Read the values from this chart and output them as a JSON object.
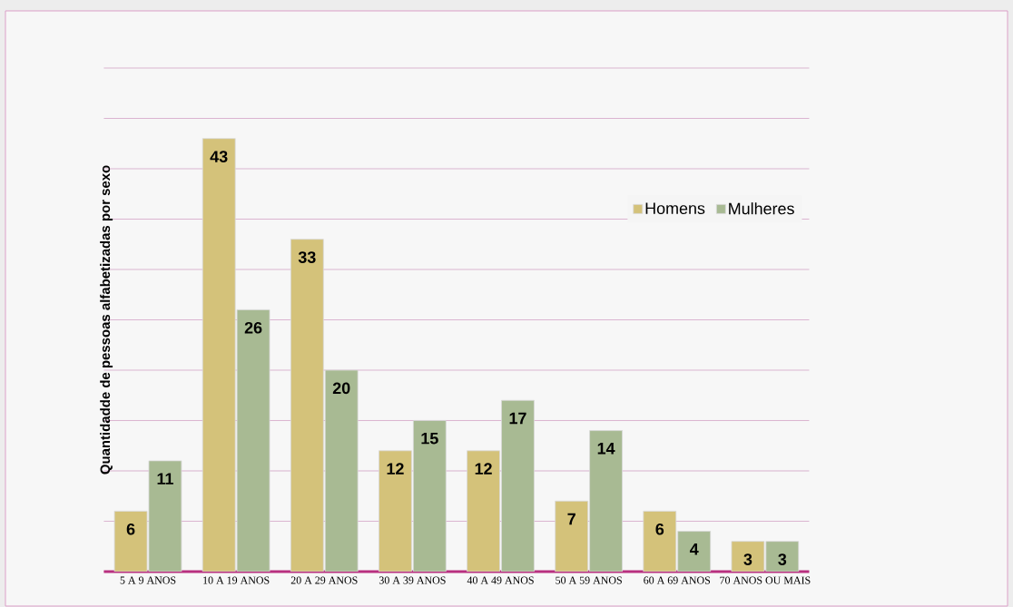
{
  "chart_data": {
    "type": "bar",
    "ylabel": "Quantidadde de pessoas alfabetizadas por sexo",
    "categories": [
      "5 A 9 ANOS",
      "10 A 19 ANOS",
      "20 A 29 ANOS",
      "30 A 39 ANOS",
      "40 A 49 ANOS",
      "50 A 59 ANOS",
      "60 A 69 ANOS",
      "70 ANOS OU MAIS"
    ],
    "series": [
      {
        "name": "Homens",
        "color": "#d4c27a",
        "values": [
          6,
          43,
          33,
          12,
          12,
          7,
          6,
          3
        ]
      },
      {
        "name": "Mulheres",
        "color": "#a8ba93",
        "values": [
          11,
          26,
          20,
          15,
          17,
          14,
          4,
          3
        ]
      }
    ],
    "ylim": [
      0,
      50
    ],
    "yticks": [
      {
        "value": 0,
        "label": null
      },
      {
        "value": 5,
        "label": null
      },
      {
        "value": 10,
        "label": null
      },
      {
        "value": 15,
        "label": null
      },
      {
        "value": 20,
        "label": null
      },
      {
        "value": 25,
        "label": null
      },
      {
        "value": 30,
        "label": null
      },
      {
        "value": 35,
        "label": null
      },
      {
        "value": 40,
        "label": null
      },
      {
        "value": 45,
        "label": null
      },
      {
        "value": 50,
        "label": null
      }
    ],
    "tick_labels": "x",
    "grid": "y",
    "legend": "right",
    "data_labels": true
  }
}
